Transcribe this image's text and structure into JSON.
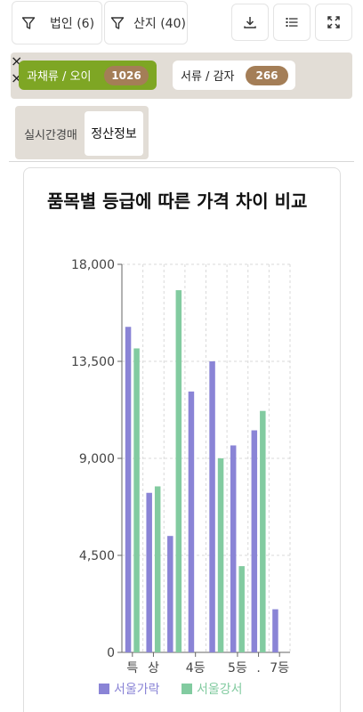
{
  "toolbar": {
    "corp_filter": "법인 (6)",
    "origin_filter": "산지 (40)",
    "download_label": "",
    "list_label": "",
    "expand_label": ""
  },
  "chips": [
    {
      "label": "과채류 / 오이",
      "count": "1026",
      "bg": "#7ea624",
      "color": "#ffffff"
    },
    {
      "label": "서류 / 감자",
      "count": "266",
      "bg": "#ffffff",
      "color": "#222222"
    }
  ],
  "subtabs": [
    "실시간경매",
    "정산정보"
  ],
  "card": {
    "title": "품목별 등급에 따른 가격 차이 비교"
  },
  "chart_data": {
    "type": "bar",
    "title": "품목별 등급에 따른 가격 차이 비교",
    "categories": [
      "특",
      "상",
      "",
      "4등",
      "",
      "5등",
      ".",
      "7등"
    ],
    "tick_labels": [
      "특",
      "상",
      "4등",
      "5등",
      ".",
      "7등"
    ],
    "yticks": [
      "0",
      "4,500",
      "9,000",
      "13,500",
      "18,000"
    ],
    "ylim": [
      0,
      18000
    ],
    "grid": true,
    "legend_position": "bottom",
    "series": [
      {
        "name": "서울가락",
        "color": "#8a84d6",
        "values": [
          15100,
          7400,
          5400,
          12100,
          13500,
          9600,
          10300,
          2000
        ]
      },
      {
        "name": "서울강서",
        "color": "#82cba0",
        "values": [
          14100,
          7700,
          16800,
          0,
          9000,
          4000,
          11200,
          0
        ]
      }
    ]
  }
}
